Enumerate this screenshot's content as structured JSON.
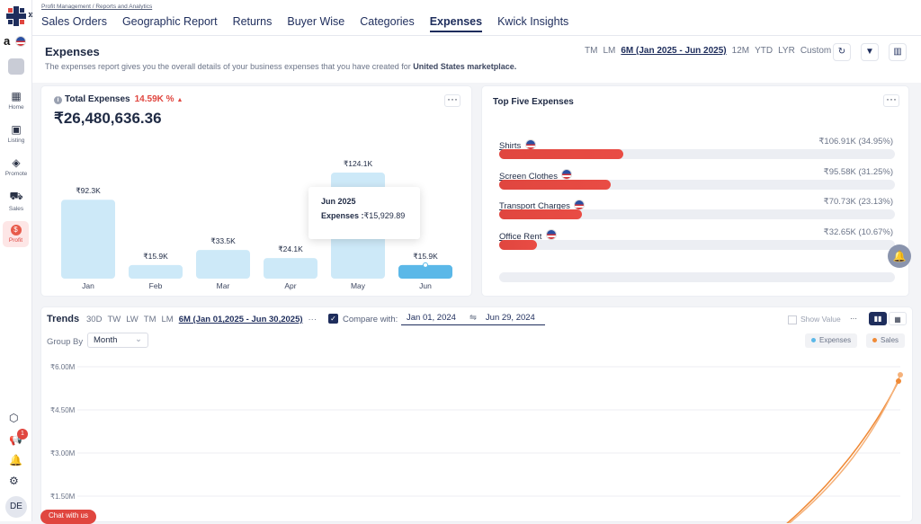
{
  "app": {
    "breadcrumb": "Profit Management / Reports and Analytics",
    "marketplace_logo": "a",
    "chat_label": "Chat with us",
    "user_initials": "DE",
    "notification_count": "1"
  },
  "top_tabs": [
    {
      "label": "Sales Orders"
    },
    {
      "label": "Geographic Report"
    },
    {
      "label": "Returns"
    },
    {
      "label": "Buyer Wise"
    },
    {
      "label": "Categories"
    },
    {
      "label": "Expenses",
      "active": true
    },
    {
      "label": "Kwick Insights"
    }
  ],
  "sidebar": {
    "items": [
      {
        "label": "Home",
        "icon": "grid-icon"
      },
      {
        "label": "Listing",
        "icon": "listing-icon"
      },
      {
        "label": "Promote",
        "icon": "tag-icon"
      },
      {
        "label": "Sales",
        "icon": "cart-icon"
      },
      {
        "label": "Profit",
        "icon": "dollar-icon",
        "active": true
      }
    ]
  },
  "header": {
    "title": "Expenses",
    "description": "The expenses report gives you the overall details of your business expenses that you have created for ",
    "marketplace": "United States marketplace.",
    "periods": [
      {
        "label": "TM"
      },
      {
        "label": "LM"
      },
      {
        "label": "6M (Jan 2025 - Jun 2025)",
        "active": true
      },
      {
        "label": "12M"
      },
      {
        "label": "YTD"
      },
      {
        "label": "LYR"
      },
      {
        "label": "Custom"
      }
    ]
  },
  "total": {
    "title": "Total Expenses",
    "change": "14.59K %",
    "amount": "₹26,480,636.36"
  },
  "tooltip": {
    "title": "Jun 2025",
    "label": "Expenses :",
    "value": "₹15,929.89"
  },
  "chart_data": [
    {
      "type": "bar",
      "title": "Total Expenses",
      "categories": [
        "Jan",
        "Feb",
        "Mar",
        "Apr",
        "May",
        "Jun"
      ],
      "values": [
        92300,
        15900,
        33500,
        24100,
        124100,
        15900
      ],
      "labels": [
        "₹92.3K",
        "₹15.9K",
        "₹33.5K",
        "₹24.1K",
        "₹124.1K",
        "₹15.9K"
      ],
      "highlight": "Jun",
      "colors": {
        "bar": "#cde9f8",
        "active": "#5bb8e8"
      }
    },
    {
      "type": "line",
      "title": "Trends",
      "ylim": [
        0,
        6000000
      ],
      "yticks": [
        "₹1.50M",
        "₹3.00M",
        "₹4.50M",
        "₹6.00M"
      ],
      "series": [
        {
          "name": "Expenses",
          "color": "#5bb8e8"
        },
        {
          "name": "Sales",
          "color": "#f08a36"
        }
      ]
    }
  ],
  "top_five": {
    "title": "Top Five Expenses",
    "items": [
      {
        "name": "Shirts",
        "value": "₹106.91K (34.95%)",
        "pct": 34.95
      },
      {
        "name": "Screen Clothes",
        "value": "₹95.58K (31.25%)",
        "pct": 31.25
      },
      {
        "name": "Transport Charges",
        "value": "₹70.73K (23.13%)",
        "pct": 23.13
      },
      {
        "name": "Office Rent",
        "value": "₹32.65K (10.67%)",
        "pct": 10.67
      }
    ]
  },
  "trends": {
    "title": "Trends",
    "periods": [
      {
        "label": "30D"
      },
      {
        "label": "TW"
      },
      {
        "label": "LW"
      },
      {
        "label": "TM"
      },
      {
        "label": "LM"
      },
      {
        "label": "6M (Jan 01,2025 - Jun 30,2025)",
        "active": true
      }
    ],
    "compare_label": "Compare with:",
    "compare_from": "Jan 01, 2024",
    "compare_to": "Jun 29, 2024",
    "show_value": "Show Value",
    "group_by_label": "Group By",
    "group_by_value": "Month",
    "legend": [
      "Expenses",
      "Sales"
    ]
  }
}
